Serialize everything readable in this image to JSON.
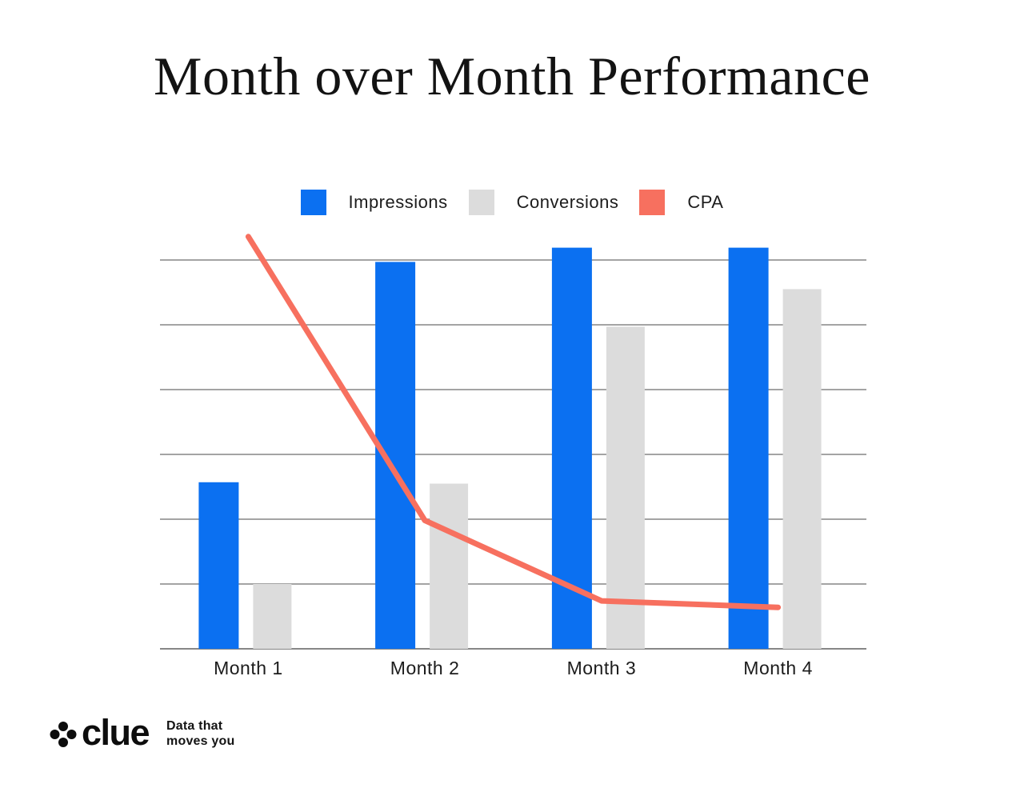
{
  "title": "Month over Month Performance",
  "legend": [
    {
      "label": "Impressions",
      "color": "#0b70f1"
    },
    {
      "label": "Conversions",
      "color": "#dcdcdc"
    },
    {
      "label": "CPA",
      "color": "#f7705f"
    }
  ],
  "chart_data": {
    "type": "bar",
    "title": "Month over Month Performance",
    "categories": [
      "Month 1",
      "Month 2",
      "Month 3",
      "Month 4"
    ],
    "series": [
      {
        "name": "Impressions",
        "type": "bar",
        "color": "#0b70f1",
        "values": [
          2.57,
          5.97,
          6.19,
          6.19
        ]
      },
      {
        "name": "Conversions",
        "type": "bar",
        "color": "#dcdcdc",
        "values": [
          1.0,
          2.55,
          4.97,
          5.55
        ]
      },
      {
        "name": "CPA",
        "type": "line",
        "color": "#f7705f",
        "values": [
          6.36,
          1.98,
          0.74,
          0.64
        ]
      }
    ],
    "xlabel": "",
    "ylabel": "",
    "ylim": [
      0,
      6.6
    ],
    "gridline_step": 1,
    "gridline_count": 7,
    "y_tick_labels_visible": false,
    "legend_position": "top",
    "note": "values are in gridline units; no numeric axis labels are shown in the chart"
  },
  "footer": {
    "brand": "clue",
    "tagline_line1": "Data that",
    "tagline_line2": "moves you",
    "logo_icon": "four-dots-clover"
  },
  "colors": {
    "background": "#ffffff",
    "gridline": "#868686",
    "axis_label_text": "#1c1c1c",
    "title_text": "#131313"
  }
}
